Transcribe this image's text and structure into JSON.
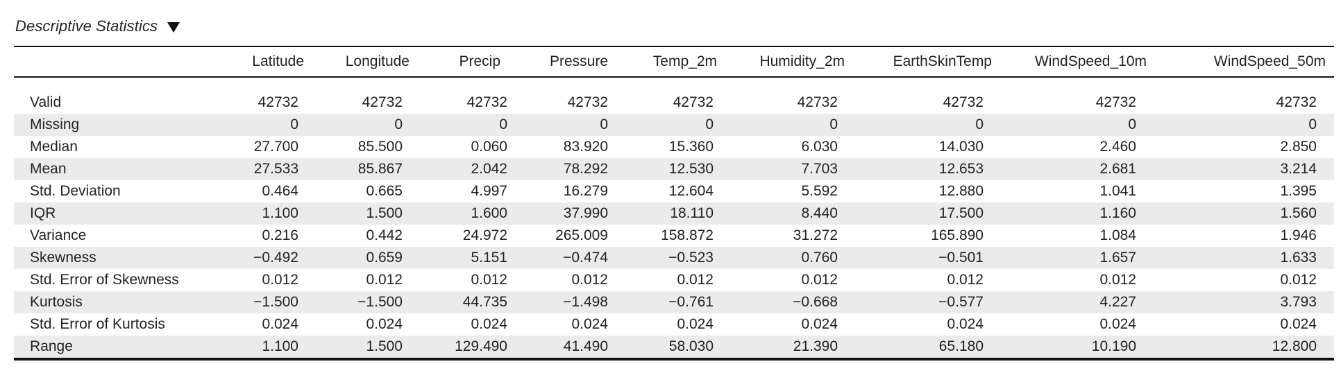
{
  "header": {
    "title": "Descriptive Statistics"
  },
  "table": {
    "columns": [
      "Latitude",
      "Longitude",
      "Precip",
      "Pressure",
      "Temp_2m",
      "Humidity_2m",
      "EarthSkinTemp",
      "WindSpeed_10m",
      "WindSpeed_50m"
    ],
    "rows": [
      {
        "label": "Valid",
        "values": [
          "42732",
          "42732",
          "42732",
          "42732",
          "42732",
          "42732",
          "42732",
          "42732",
          "42732"
        ]
      },
      {
        "label": "Missing",
        "values": [
          "0",
          "0",
          "0",
          "0",
          "0",
          "0",
          "0",
          "0",
          "0"
        ]
      },
      {
        "label": "Median",
        "values": [
          "27.700",
          "85.500",
          "0.060",
          "83.920",
          "15.360",
          "6.030",
          "14.030",
          "2.460",
          "2.850"
        ]
      },
      {
        "label": "Mean",
        "values": [
          "27.533",
          "85.867",
          "2.042",
          "78.292",
          "12.530",
          "7.703",
          "12.653",
          "2.681",
          "3.214"
        ]
      },
      {
        "label": "Std. Deviation",
        "values": [
          "0.464",
          "0.665",
          "4.997",
          "16.279",
          "12.604",
          "5.592",
          "12.880",
          "1.041",
          "1.395"
        ]
      },
      {
        "label": "IQR",
        "values": [
          "1.100",
          "1.500",
          "1.600",
          "37.990",
          "18.110",
          "8.440",
          "17.500",
          "1.160",
          "1.560"
        ]
      },
      {
        "label": "Variance",
        "values": [
          "0.216",
          "0.442",
          "24.972",
          "265.009",
          "158.872",
          "31.272",
          "165.890",
          "1.084",
          "1.946"
        ]
      },
      {
        "label": "Skewness",
        "values": [
          "−0.492",
          "0.659",
          "5.151",
          "−0.474",
          "−0.523",
          "0.760",
          "−0.501",
          "1.657",
          "1.633"
        ]
      },
      {
        "label": "Std. Error of Skewness",
        "values": [
          "0.012",
          "0.012",
          "0.012",
          "0.012",
          "0.012",
          "0.012",
          "0.012",
          "0.012",
          "0.012"
        ]
      },
      {
        "label": "Kurtosis",
        "values": [
          "−1.500",
          "−1.500",
          "44.735",
          "−1.498",
          "−0.761",
          "−0.668",
          "−0.577",
          "4.227",
          "3.793"
        ]
      },
      {
        "label": "Std. Error of Kurtosis",
        "values": [
          "0.024",
          "0.024",
          "0.024",
          "0.024",
          "0.024",
          "0.024",
          "0.024",
          "0.024",
          "0.024"
        ]
      },
      {
        "label": "Range",
        "values": [
          "1.100",
          "1.500",
          "129.490",
          "41.490",
          "58.030",
          "21.390",
          "65.180",
          "10.190",
          "12.800"
        ]
      }
    ]
  },
  "icons": {
    "title_toggle": "triangle-down-icon"
  },
  "colors": {
    "shaded_row": "#ebebeb",
    "rule": "#111111",
    "text": "#222222"
  }
}
